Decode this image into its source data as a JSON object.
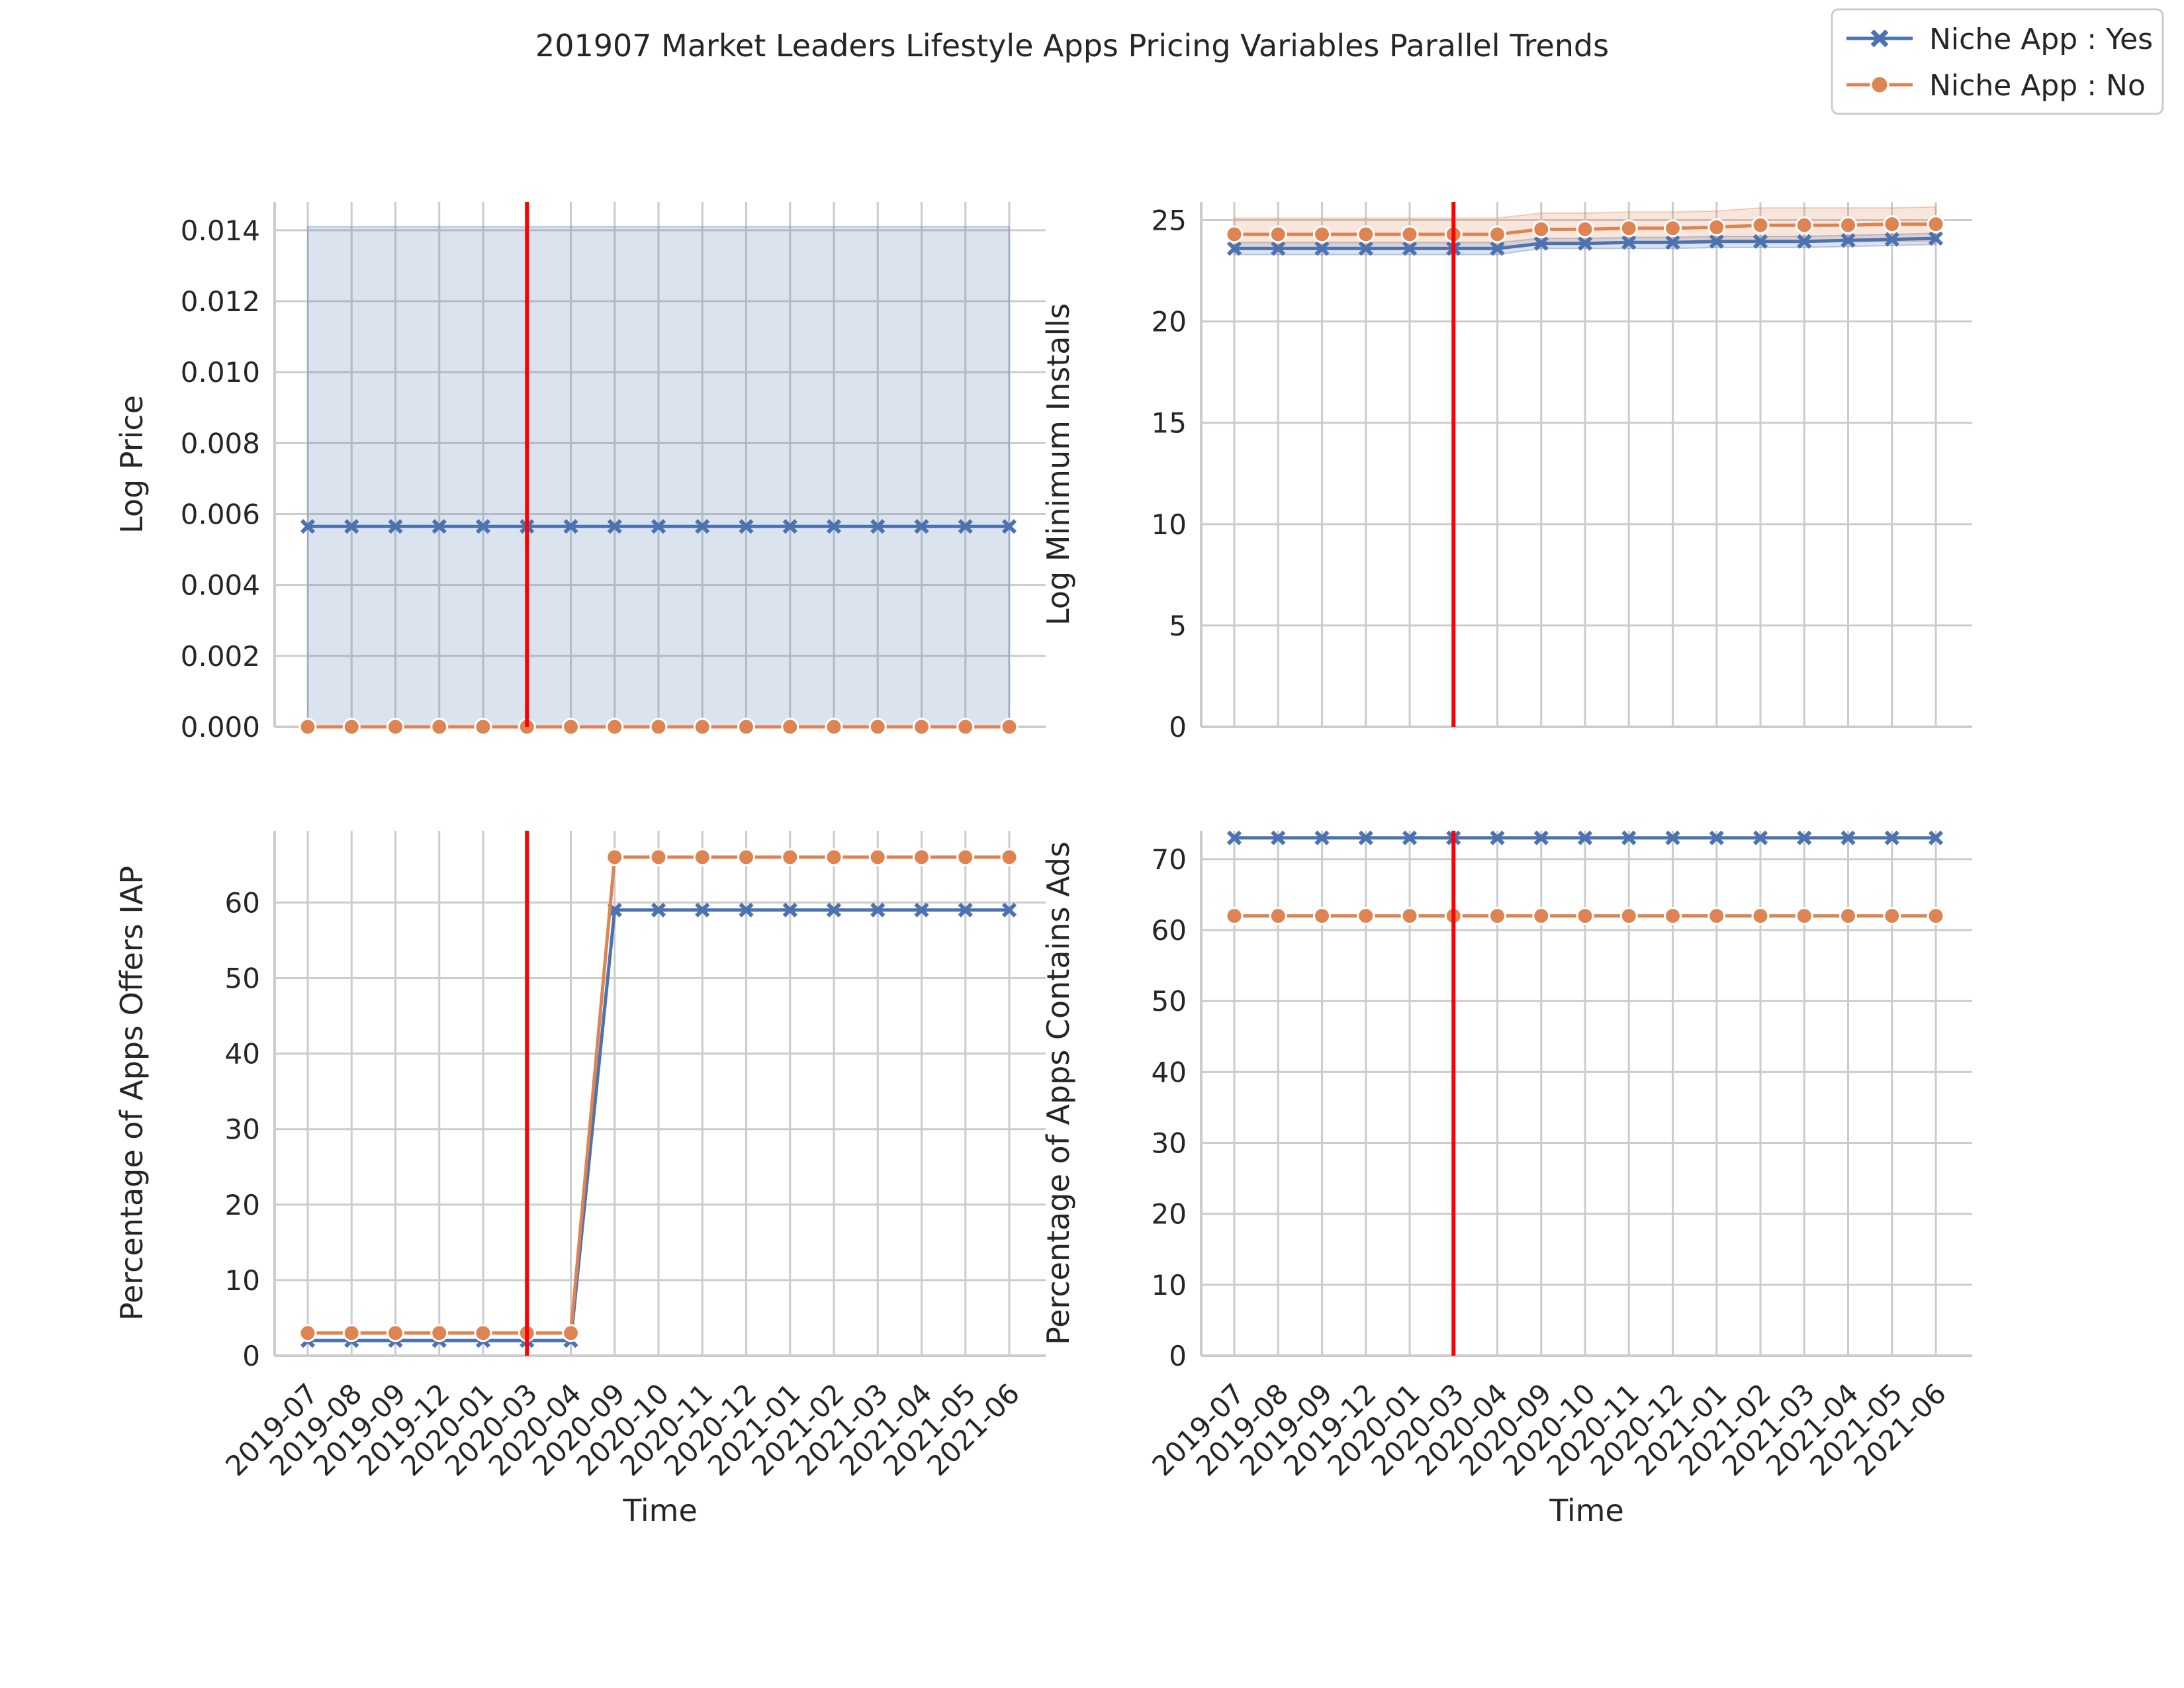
{
  "chart_data": {
    "type": "line",
    "title": "201907 Market Leaders Lifestyle Apps Pricing Variables Parallel Trends",
    "legend": {
      "placement": "top-right",
      "entries": [
        {
          "name": "Niche App : Yes",
          "color": "#4c72b0",
          "marker": "x"
        },
        {
          "name": "Niche App : No",
          "color": "#dd8452",
          "marker": "o"
        }
      ]
    },
    "x": [
      "2019-07",
      "2019-08",
      "2019-09",
      "2019-12",
      "2020-01",
      "2020-03",
      "2020-04",
      "2020-09",
      "2020-10",
      "2020-11",
      "2020-12",
      "2021-01",
      "2021-02",
      "2021-03",
      "2021-04",
      "2021-05",
      "2021-06"
    ],
    "reference_line": {
      "x": "2020-03",
      "color": "#ff0000"
    },
    "panels": [
      {
        "ylabel": "Log Price",
        "xlabel": "",
        "ylim": [
          0,
          0.0148
        ],
        "yticks": [
          "0.000",
          "0.002",
          "0.004",
          "0.006",
          "0.008",
          "0.010",
          "0.012",
          "0.014"
        ],
        "ytick_values": [
          0,
          0.002,
          0.004,
          0.006,
          0.008,
          0.01,
          0.012,
          0.014
        ],
        "show_xticks": false,
        "series": [
          {
            "name": "Niche App : Yes",
            "values": [
              0.00565,
              0.00565,
              0.00565,
              0.00565,
              0.00565,
              0.00565,
              0.00565,
              0.00565,
              0.00565,
              0.00565,
              0.00565,
              0.00565,
              0.00565,
              0.00565,
              0.00565,
              0.00565,
              0.00565
            ],
            "ci_low": [
              0,
              0,
              0,
              0,
              0,
              0,
              0,
              0,
              0,
              0,
              0,
              0,
              0,
              0,
              0,
              0,
              0
            ],
            "ci_high": [
              0.0141,
              0.0141,
              0.0141,
              0.0141,
              0.0141,
              0.0141,
              0.0141,
              0.0141,
              0.0141,
              0.0141,
              0.0141,
              0.0141,
              0.0141,
              0.0141,
              0.0141,
              0.0141,
              0.0141
            ]
          },
          {
            "name": "Niche App : No",
            "values": [
              0,
              0,
              0,
              0,
              0,
              0,
              0,
              0,
              0,
              0,
              0,
              0,
              0,
              0,
              0,
              0,
              0
            ]
          }
        ]
      },
      {
        "ylabel": "Log Minimum Installs",
        "xlabel": "",
        "ylim": [
          0,
          25.9
        ],
        "yticks": [
          "0",
          "5",
          "10",
          "15",
          "20",
          "25"
        ],
        "ytick_values": [
          0,
          5,
          10,
          15,
          20,
          25
        ],
        "show_xticks": false,
        "series": [
          {
            "name": "Niche App : Yes",
            "values": [
              23.6,
              23.6,
              23.6,
              23.6,
              23.6,
              23.6,
              23.6,
              23.85,
              23.85,
              23.9,
              23.9,
              23.95,
              23.95,
              23.95,
              24.0,
              24.05,
              24.1
            ],
            "ci_low": [
              23.3,
              23.3,
              23.3,
              23.3,
              23.3,
              23.3,
              23.3,
              23.6,
              23.6,
              23.6,
              23.6,
              23.65,
              23.65,
              23.65,
              23.7,
              23.75,
              23.8
            ],
            "ci_high": [
              23.9,
              23.9,
              23.9,
              23.9,
              23.9,
              23.9,
              23.9,
              24.1,
              24.1,
              24.15,
              24.15,
              24.2,
              24.2,
              24.2,
              24.25,
              24.3,
              24.35
            ]
          },
          {
            "name": "Niche App : No",
            "values": [
              24.3,
              24.3,
              24.3,
              24.3,
              24.3,
              24.3,
              24.3,
              24.55,
              24.55,
              24.6,
              24.6,
              24.65,
              24.75,
              24.75,
              24.75,
              24.8,
              24.8
            ],
            "ci_low": [
              23.6,
              23.6,
              23.6,
              23.6,
              23.6,
              23.6,
              23.6,
              23.85,
              23.85,
              23.9,
              23.9,
              23.9,
              23.95,
              23.95,
              23.95,
              23.95,
              23.95
            ],
            "ci_high": [
              25.1,
              25.1,
              25.1,
              25.1,
              25.1,
              25.1,
              25.1,
              25.35,
              25.35,
              25.4,
              25.4,
              25.45,
              25.6,
              25.6,
              25.6,
              25.6,
              25.65
            ]
          }
        ]
      },
      {
        "ylabel": "Percentage of Apps Offers IAP",
        "xlabel": "Time",
        "ylim": [
          0,
          69.5
        ],
        "yticks": [
          "0",
          "10",
          "20",
          "30",
          "40",
          "50",
          "60"
        ],
        "ytick_values": [
          0,
          10,
          20,
          30,
          40,
          50,
          60
        ],
        "show_xticks": true,
        "series": [
          {
            "name": "Niche App : Yes",
            "values": [
              2,
              2,
              2,
              2,
              2,
              2,
              2,
              59,
              59,
              59,
              59,
              59,
              59,
              59,
              59,
              59,
              59
            ]
          },
          {
            "name": "Niche App : No",
            "values": [
              3,
              3,
              3,
              3,
              3,
              3,
              3,
              66,
              66,
              66,
              66,
              66,
              66,
              66,
              66,
              66,
              66
            ]
          }
        ]
      },
      {
        "ylabel": "Percentage of Apps Contains Ads",
        "xlabel": "Time",
        "ylim": [
          0,
          74
        ],
        "yticks": [
          "0",
          "10",
          "20",
          "30",
          "40",
          "50",
          "60",
          "70"
        ],
        "ytick_values": [
          0,
          10,
          20,
          30,
          40,
          50,
          60,
          70
        ],
        "show_xticks": true,
        "series": [
          {
            "name": "Niche App : Yes",
            "values": [
              73,
              73,
              73,
              73,
              73,
              73,
              73,
              73,
              73,
              73,
              73,
              73,
              73,
              73,
              73,
              73,
              73
            ]
          },
          {
            "name": "Niche App : No",
            "values": [
              62,
              62,
              62,
              62,
              62,
              62,
              62,
              62,
              62,
              62,
              62,
              62,
              62,
              62,
              62,
              62,
              62
            ]
          }
        ]
      }
    ]
  }
}
